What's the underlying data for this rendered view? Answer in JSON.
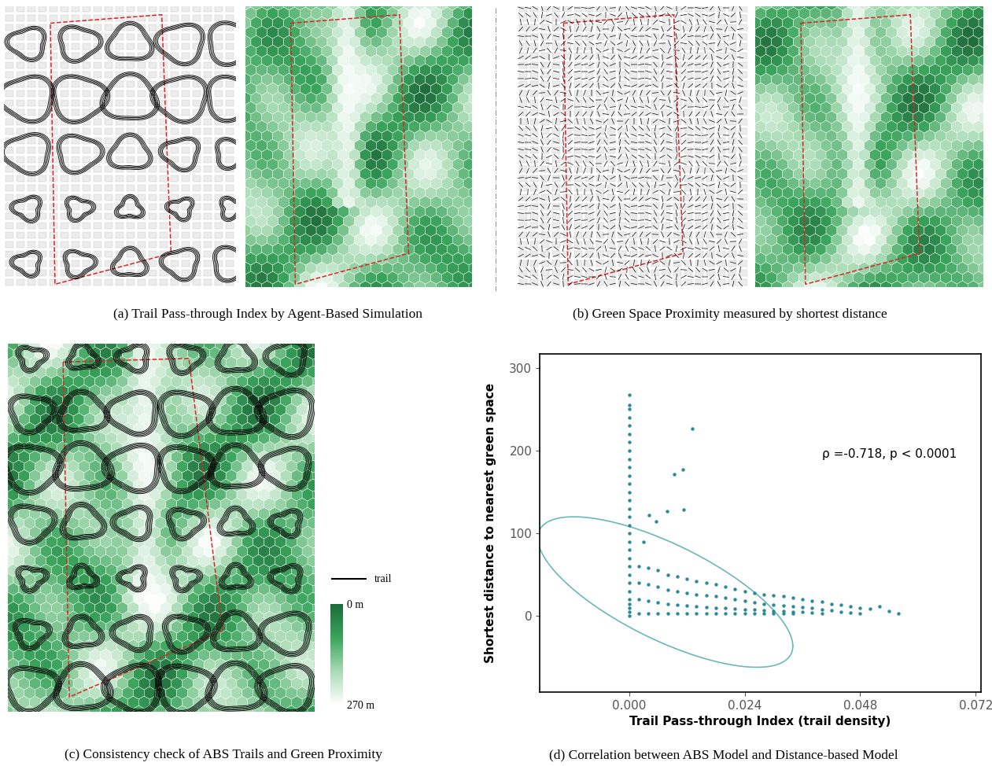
{
  "panels": [
    {
      "caption": "(a) Trail Pass-through Index by Agent-Based Simulation"
    },
    {
      "caption": "(b) Green Space Proximity measured by shortest distance"
    },
    {
      "caption": "(c) Consistency check of ABS Trails and Green Proximity",
      "line_legend": "trail",
      "colorbar": {
        "range": [
          0,
          270
        ],
        "ticks": [
          {
            "value": 0,
            "label": "0 m"
          },
          {
            "value": 270,
            "label": "270 m"
          }
        ]
      }
    }
  ],
  "chart_data": {
    "type": "scatter",
    "caption": "(d) Correlation between ABS Model and Distance-based Model",
    "x_label": "Trail Pass-through Index (trail density)",
    "y_label": "Shortest distance to nearest green space",
    "annotation": "ρ =-0.718, p < 0.0001",
    "rho": -0.718,
    "ellipse": {
      "center": [
        0.0075,
        29
      ],
      "radii": [
        0.0265,
        91
      ]
    },
    "color": "#2b8a99",
    "x": [
      0,
      0,
      0,
      0,
      0,
      0,
      0,
      0,
      0,
      0,
      0,
      0,
      0,
      0,
      0,
      0,
      0,
      0,
      0,
      0,
      0,
      0,
      0,
      0,
      0,
      0,
      0,
      0,
      0,
      0,
      0.002,
      0.002,
      0.002,
      0.002,
      0.004,
      0.004,
      0.004,
      0.004,
      0.006,
      0.006,
      0.006,
      0.006,
      0.008,
      0.008,
      0.008,
      0.008,
      0.01,
      0.01,
      0.01,
      0.01,
      0.012,
      0.012,
      0.012,
      0.012,
      0.014,
      0.014,
      0.014,
      0.014,
      0.016,
      0.016,
      0.016,
      0.016,
      0.018,
      0.018,
      0.018,
      0.018,
      0.02,
      0.02,
      0.02,
      0.02,
      0.022,
      0.022,
      0.022,
      0.022,
      0.024,
      0.024,
      0.024,
      0.024,
      0.026,
      0.026,
      0.026,
      0.026,
      0.028,
      0.028,
      0.028,
      0.028,
      0.03,
      0.03,
      0.03,
      0.03,
      0.032,
      0.032,
      0.032,
      0.032,
      0.034,
      0.034,
      0.034,
      0.034,
      0.036,
      0.036,
      0.036,
      0.038,
      0.038,
      0.038,
      0.04,
      0.04,
      0.04,
      0.042,
      0.042,
      0.044,
      0.044,
      0.046,
      0.046,
      0.048,
      0.048,
      0.05,
      0.052,
      0.054,
      0.056,
      0.0131,
      0.0111,
      0.0093,
      0.0113,
      0.0078,
      0.0042,
      0.0056,
      0.003
    ],
    "values": [
      0,
      5,
      10,
      15,
      20,
      30,
      40,
      50,
      60,
      70,
      80,
      90,
      100,
      110,
      120,
      130,
      140,
      150,
      160,
      170,
      180,
      190,
      200,
      210,
      220,
      230,
      240,
      250,
      255,
      268,
      60,
      40,
      20,
      3,
      58,
      38,
      18,
      3,
      55,
      35,
      16,
      3,
      50,
      32,
      15,
      3,
      48,
      30,
      14,
      3,
      45,
      28,
      13,
      3,
      42,
      26,
      12,
      3,
      40,
      25,
      11,
      3,
      38,
      24,
      10,
      3,
      35,
      22,
      10,
      3,
      33,
      20,
      9,
      3,
      30,
      18,
      8,
      3,
      28,
      16,
      8,
      3,
      26,
      15,
      7,
      3,
      25,
      14,
      6,
      3,
      24,
      13,
      6,
      3,
      22,
      12,
      5,
      3,
      20,
      11,
      5,
      18,
      10,
      4,
      17,
      8,
      3,
      15,
      7,
      14,
      5,
      12,
      4,
      10,
      3,
      9,
      12,
      6,
      3,
      227,
      177,
      171,
      129,
      127,
      122,
      114,
      90
    ],
    "xlim": [
      -0.0186,
      0.0731
    ],
    "ylim": [
      -92,
      317
    ],
    "xticks": [
      {
        "value": 0,
        "label": "0.000"
      },
      {
        "value": 0.024,
        "label": "0.024"
      },
      {
        "value": 0.048,
        "label": "0.048"
      },
      {
        "value": 0.072,
        "label": "0.072"
      }
    ],
    "yticks": [
      0,
      100,
      200,
      300
    ]
  }
}
